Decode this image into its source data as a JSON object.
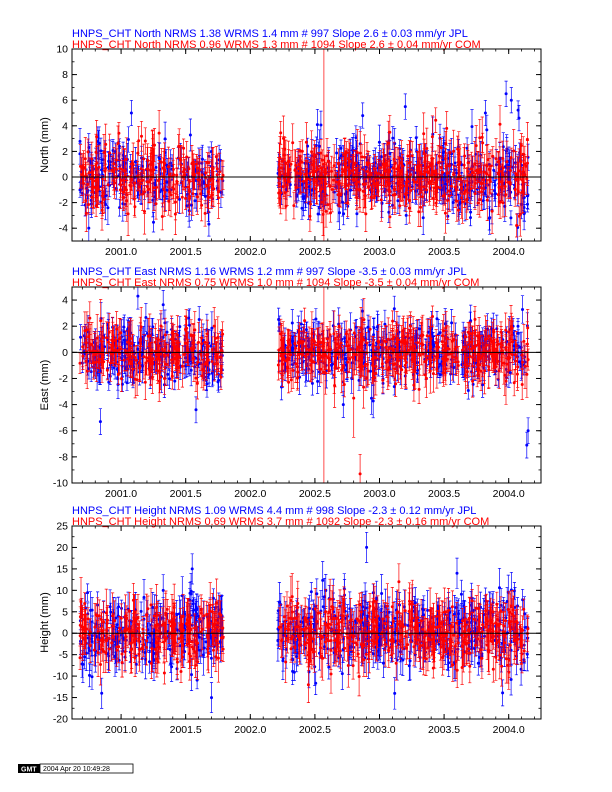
{
  "chart_data": [
    {
      "type": "scatter",
      "station": "HNPS_CHT",
      "title_lines": [
        {
          "series": "JPL",
          "text": "HNPS_CHT North NRMS 1.38 WRMS  1.4 mm # 997 Slope    2.6 ±  0.03 mm/yr JPL",
          "color": "#0000ff"
        },
        {
          "series": "COM",
          "text": "HNPS_CHT North NRMS 0.96 WRMS  1.3 mm # 1094 Slope    2.6 ±  0.04 mm/yr COM",
          "color": "#ff0000"
        }
      ],
      "ylabel": "North (mm)",
      "xlim": [
        2000.62,
        2004.25
      ],
      "ylim": [
        -5,
        10
      ],
      "xticks": [
        "2001.0",
        "2001.5",
        "2002.0",
        "2002.5",
        "2003.0",
        "2003.5",
        "2004.0"
      ],
      "yticks": [
        "-4",
        "-2",
        "0",
        "2",
        "4",
        "6",
        "8",
        "10"
      ],
      "data_gap": [
        2001.79,
        2002.21
      ],
      "series": [
        {
          "name": "JPL",
          "color": "#0000ff",
          "nrms": 1.38,
          "wrms_mm": 1.4,
          "count": 997,
          "slope_mm_yr": 2.6,
          "slope_sigma": 0.03,
          "x_range": [
            2000.68,
            2004.15
          ],
          "scatter_sd": 1.4,
          "sigma_mm": 0.9,
          "seed": 11,
          "outliers": [
            {
              "x": 2003.2,
              "y": 5.5
            },
            {
              "x": 2003.82,
              "y": 5.0
            },
            {
              "x": 2003.98,
              "y": 6.5
            },
            {
              "x": 2004.02,
              "y": 6.0
            },
            {
              "x": 2004.08,
              "y": 4.6
            },
            {
              "x": 2001.08,
              "y": 5.0
            },
            {
              "x": 2002.87,
              "y": 4.8
            }
          ]
        },
        {
          "name": "COM",
          "color": "#ff0000",
          "nrms": 0.96,
          "wrms_mm": 1.3,
          "count": 1094,
          "slope_mm_yr": 2.6,
          "slope_sigma": 0.04,
          "x_range": [
            2000.68,
            2004.15
          ],
          "scatter_sd": 1.3,
          "sigma_mm": 1.2,
          "seed": 23,
          "outliers": [
            {
              "x": 2002.57,
              "y": 1.0,
              "err": 9.5
            },
            {
              "x": 2003.08,
              "y": 3.5
            },
            {
              "x": 2003.52,
              "y": 3.8
            }
          ]
        }
      ]
    },
    {
      "type": "scatter",
      "station": "HNPS_CHT",
      "title_lines": [
        {
          "series": "JPL",
          "text": "HNPS_CHT East NRMS 1.16 WRMS  1.2 mm # 997 Slope   -3.5 ±  0.03 mm/yr JPL",
          "color": "#0000ff"
        },
        {
          "series": "COM",
          "text": "HNPS_CHT East NRMS 0.75 WRMS  1.0 mm # 1094 Slope   -3.5 ±  0.04 mm/yr COM",
          "color": "#ff0000"
        }
      ],
      "ylabel": "East (mm)",
      "xlim": [
        2000.62,
        2004.25
      ],
      "ylim": [
        -10,
        5
      ],
      "xticks": [
        "2001.0",
        "2001.5",
        "2002.0",
        "2002.5",
        "2003.0",
        "2003.5",
        "2004.0"
      ],
      "yticks": [
        "-10",
        "-8",
        "-6",
        "-4",
        "-2",
        "0",
        "2",
        "4"
      ],
      "data_gap": [
        2001.79,
        2002.21
      ],
      "series": [
        {
          "name": "JPL",
          "color": "#0000ff",
          "nrms": 1.16,
          "wrms_mm": 1.2,
          "count": 997,
          "slope_mm_yr": -3.5,
          "slope_sigma": 0.03,
          "x_range": [
            2000.68,
            2004.15
          ],
          "scatter_sd": 1.2,
          "sigma_mm": 0.9,
          "seed": 37,
          "outliers": [
            {
              "x": 2000.84,
              "y": -5.3
            },
            {
              "x": 2001.13,
              "y": 4.3
            },
            {
              "x": 2004.15,
              "y": -6.0
            },
            {
              "x": 2004.14,
              "y": -7.1
            },
            {
              "x": 2001.58,
              "y": -4.4
            },
            {
              "x": 2002.72,
              "y": -4.0
            }
          ]
        },
        {
          "name": "COM",
          "color": "#ff0000",
          "nrms": 0.75,
          "wrms_mm": 1.0,
          "count": 1094,
          "slope_mm_yr": -3.5,
          "slope_sigma": 0.04,
          "x_range": [
            2000.68,
            2004.15
          ],
          "scatter_sd": 1.0,
          "sigma_mm": 1.2,
          "seed": 53,
          "outliers": [
            {
              "x": 2002.57,
              "y": -1.5,
              "err": 9.0
            },
            {
              "x": 2002.85,
              "y": -9.3,
              "err": 1.5
            },
            {
              "x": 2002.8,
              "y": -3.5,
              "err": 3.0
            }
          ]
        }
      ]
    },
    {
      "type": "scatter",
      "station": "HNPS_CHT",
      "title_lines": [
        {
          "series": "JPL",
          "text": "HNPS_CHT Height NRMS 1.09 WRMS  4.4 mm # 998 Slope   -2.3 ±  0.12 mm/yr JPL",
          "color": "#0000ff"
        },
        {
          "series": "COM",
          "text": "HNPS_CHT Height NRMS 0.69 WRMS  3.7 mm # 1092 Slope   -2.3 ±  0.16 mm/yr COM",
          "color": "#ff0000"
        }
      ],
      "ylabel": "Height (mm)",
      "xlim": [
        2000.62,
        2004.25
      ],
      "ylim": [
        -20,
        25
      ],
      "xticks": [
        "2001.0",
        "2001.5",
        "2002.0",
        "2002.5",
        "2003.0",
        "2003.5",
        "2004.0"
      ],
      "yticks": [
        "-20",
        "-15",
        "-10",
        "-5",
        "0",
        "5",
        "10",
        "15",
        "20",
        "25"
      ],
      "data_gap": [
        2001.79,
        2002.21
      ],
      "series": [
        {
          "name": "JPL",
          "color": "#0000ff",
          "nrms": 1.09,
          "wrms_mm": 4.4,
          "count": 998,
          "slope_mm_yr": -2.3,
          "slope_sigma": 0.12,
          "x_range": [
            2000.68,
            2004.15
          ],
          "scatter_sd": 4.4,
          "sigma_mm": 3.2,
          "seed": 71,
          "outliers": [
            {
              "x": 2002.9,
              "y": 20.0
            },
            {
              "x": 2001.55,
              "y": 15.0
            },
            {
              "x": 2001.7,
              "y": -15.0
            },
            {
              "x": 2003.6,
              "y": 14.0
            },
            {
              "x": 2000.85,
              "y": -14.0
            }
          ]
        },
        {
          "name": "COM",
          "color": "#ff0000",
          "nrms": 0.69,
          "wrms_mm": 3.7,
          "count": 1092,
          "slope_mm_yr": -2.3,
          "slope_sigma": 0.16,
          "x_range": [
            2000.68,
            2004.15
          ],
          "scatter_sd": 3.7,
          "sigma_mm": 3.8,
          "seed": 89,
          "outliers": [
            {
              "x": 2002.45,
              "y": -12.0
            },
            {
              "x": 2003.15,
              "y": 12.0
            }
          ]
        }
      ]
    }
  ],
  "footer": {
    "logo": "GMT",
    "timestamp": "2004 Apr 20 10:49:28"
  }
}
